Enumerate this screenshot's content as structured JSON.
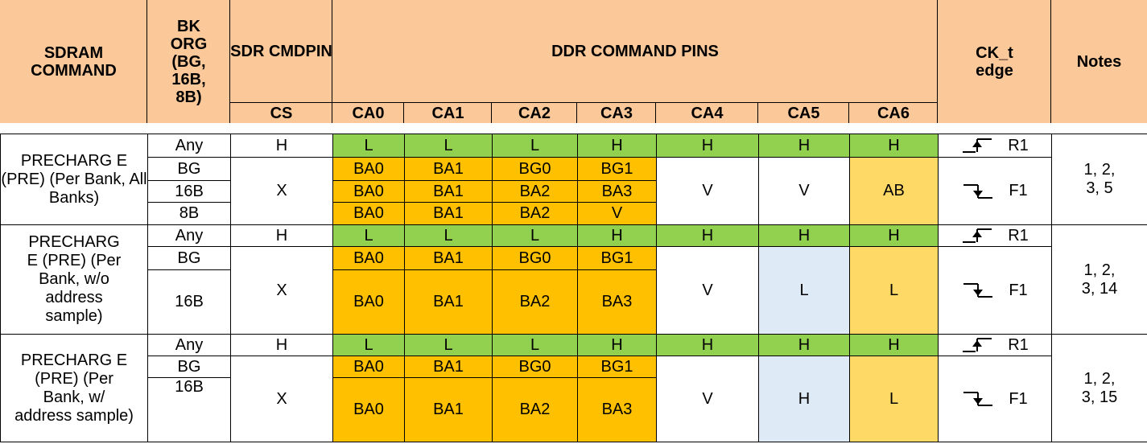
{
  "header": {
    "sdram_command": "SDRAM COMMAND",
    "bk_org": "BK ORG (BG, 16B, 8B)",
    "sdr_cmdpin": "SDR CMDPIN",
    "cs": "CS",
    "ddr_command_pins": "DDR COMMAND PINS",
    "ca": [
      "CA0",
      "CA1",
      "CA2",
      "CA3",
      "CA4",
      "CA5",
      "CA6"
    ],
    "ck_edge": "CK_t edge",
    "notes": "Notes"
  },
  "groups": [
    {
      "command": "PRECHARG E (PRE) (Per Bank, All Banks)",
      "r_row": {
        "bk": "Any",
        "cs": "H",
        "ca": [
          "L",
          "L",
          "L",
          "H",
          "H",
          "H",
          "H"
        ],
        "edge": "R1"
      },
      "sub_rows": [
        {
          "bk": "BG",
          "ca": [
            "BA0",
            "BA1",
            "BG0",
            "BG1"
          ]
        },
        {
          "bk": "16B",
          "ca": [
            "BA0",
            "BA1",
            "BA2",
            "BA3"
          ]
        },
        {
          "bk": "8B",
          "ca": [
            "BA0",
            "BA1",
            "BA2",
            "V"
          ]
        }
      ],
      "cs_f": "X",
      "ca4": "V",
      "ca5": "V",
      "ca6": "AB",
      "edge_f": "F1",
      "notes": "1, 2, 3, 5"
    },
    {
      "command": "PRECHARG E (PRE) (Per Bank, w/o address sample)",
      "r_row": {
        "bk": "Any",
        "cs": "H",
        "ca": [
          "L",
          "L",
          "L",
          "H",
          "H",
          "H",
          "H"
        ],
        "edge": "R1"
      },
      "sub_rows": [
        {
          "bk": "BG",
          "ca": [
            "BA0",
            "BA1",
            "BG0",
            "BG1"
          ]
        },
        {
          "bk": "16B",
          "ca": [
            "BA0",
            "BA1",
            "BA2",
            "BA3"
          ]
        }
      ],
      "cs_f": "X",
      "ca4": "V",
      "ca5": "L",
      "ca6": "L",
      "edge_f": "F1",
      "notes": "1, 2, 3, 14"
    },
    {
      "command": "PRECHARG E (PRE) (Per Bank, w/ address sample)",
      "r_row": {
        "bk": "Any",
        "cs": "H",
        "ca": [
          "L",
          "L",
          "L",
          "H",
          "H",
          "H",
          "H"
        ],
        "edge": "R1"
      },
      "sub_rows": [
        {
          "bk": "BG",
          "ca": [
            "BA0",
            "BA1",
            "BG0",
            "BG1"
          ]
        },
        {
          "bk": "16B",
          "ca": [
            "BA0",
            "BA1",
            "BA2",
            "BA3"
          ]
        }
      ],
      "cs_f": "X",
      "ca4": "V",
      "ca5": "H",
      "ca6": "L",
      "edge_f": "F1",
      "notes": "1, 2, 3, 15"
    }
  ]
}
